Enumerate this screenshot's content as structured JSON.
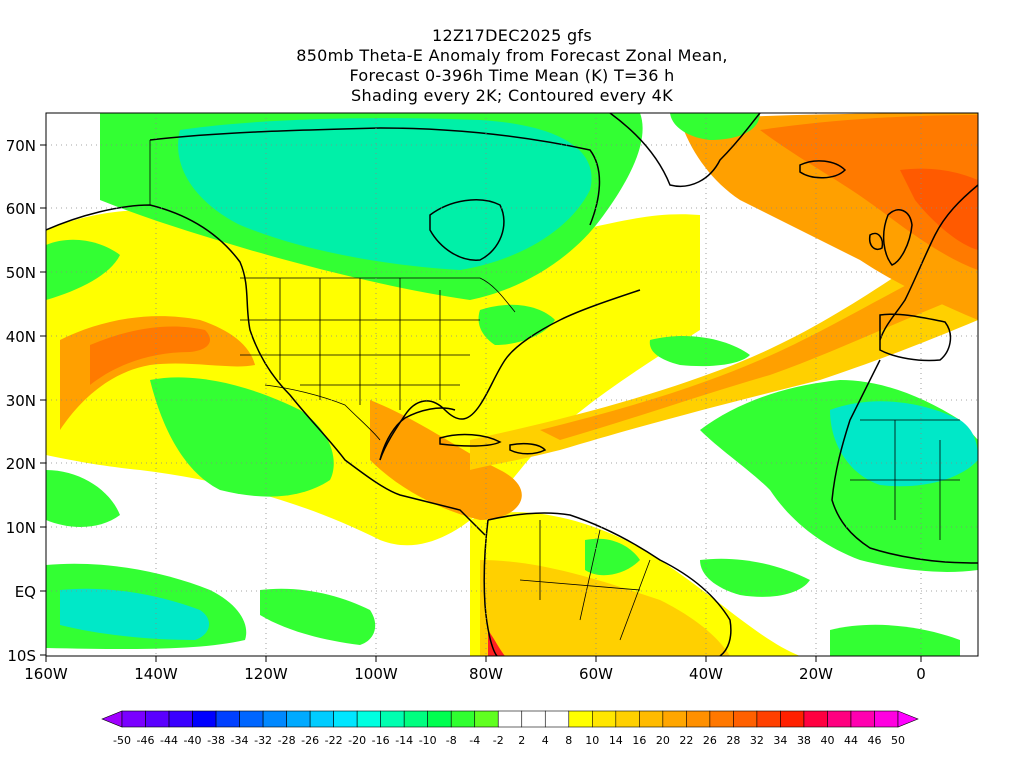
{
  "title": {
    "line1": "12Z17DEC2025 gfs",
    "line2": "850mb Theta-E Anomaly from Forecast Zonal Mean,",
    "line3": "Forecast 0-396h Time Mean (K) T=36 h",
    "line4": "Shading every 2K; Contoured every 4K"
  },
  "map": {
    "lon_range": [
      -160,
      10
    ],
    "lat_range": [
      -10,
      75
    ],
    "lat_ticks": [
      "70N",
      "60N",
      "50N",
      "40N",
      "30N",
      "20N",
      "10N",
      "EQ",
      "10S"
    ],
    "lon_ticks": [
      "160W",
      "140W",
      "120W",
      "100W",
      "80W",
      "60W",
      "40W",
      "20W",
      "0"
    ],
    "grid": "dotted"
  },
  "colorbar": {
    "labels": [
      "-50",
      "-46",
      "-44",
      "-40",
      "-38",
      "-34",
      "-32",
      "-28",
      "-26",
      "-22",
      "-20",
      "-16",
      "-14",
      "-10",
      "-8",
      "-4",
      "-2",
      "2",
      "4",
      "8",
      "10",
      "14",
      "16",
      "20",
      "22",
      "26",
      "28",
      "32",
      "34",
      "38",
      "40",
      "44",
      "46",
      "50"
    ],
    "colors": [
      "#a000ff",
      "#7a00ff",
      "#5a00ff",
      "#3a00ff",
      "#0000ff",
      "#0040ff",
      "#0066ff",
      "#0088ff",
      "#00aaff",
      "#00ccff",
      "#00e6ff",
      "#00ffe0",
      "#00ffb0",
      "#00ff80",
      "#00ff50",
      "#30ff30",
      "#60ff20",
      "#ffffff",
      "#ffffff",
      "#ffffff",
      "#ffff00",
      "#ffe600",
      "#ffd000",
      "#ffbb00",
      "#ffa600",
      "#ff9000",
      "#ff7800",
      "#ff6000",
      "#ff4000",
      "#ff2000",
      "#ff0040",
      "#ff0080",
      "#ff00b0",
      "#ff00e0",
      "#ff00ff"
    ]
  },
  "fill_colors": {
    "green": "#33ff33",
    "cyan_green": "#00f0a8",
    "teal": "#00e8c8",
    "yellow": "#ffff00",
    "yellow_orange": "#ffd000",
    "orange": "#ffa000",
    "dark_orange": "#ff7a00",
    "red_orange": "#ff5a00",
    "red": "#ff2020"
  }
}
